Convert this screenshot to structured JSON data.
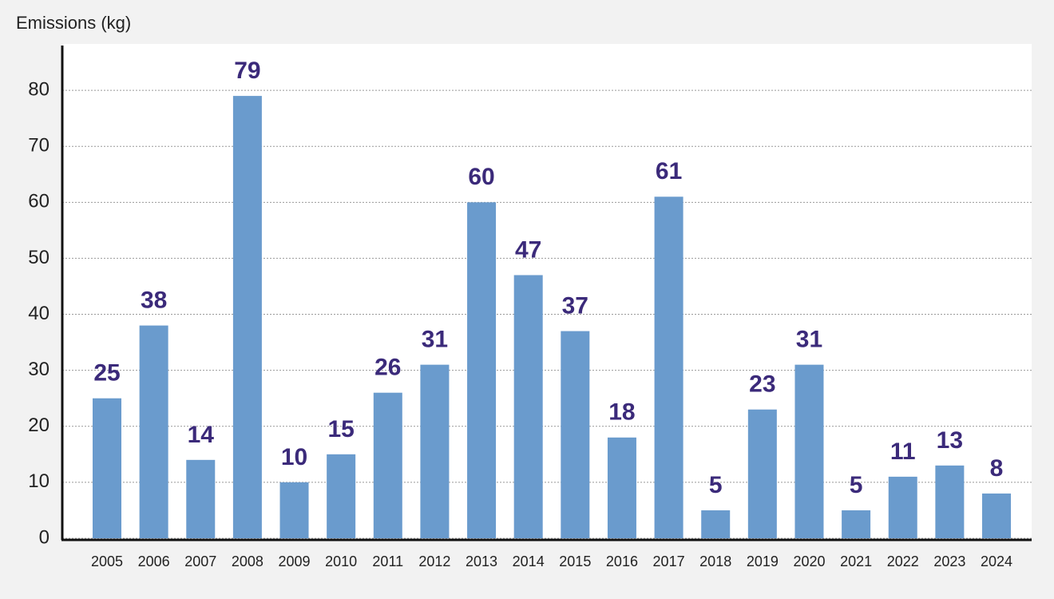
{
  "chart_data": {
    "type": "bar",
    "y_label": "Emissions (kg)",
    "categories": [
      "2005",
      "2006",
      "2007",
      "2008",
      "2009",
      "2010",
      "2011",
      "2012",
      "2013",
      "2014",
      "2015",
      "2016",
      "2017",
      "2018",
      "2019",
      "2020",
      "2021",
      "2022",
      "2023",
      "2024"
    ],
    "values": [
      25,
      38,
      14,
      79,
      10,
      15,
      26,
      31,
      60,
      47,
      37,
      18,
      61,
      5,
      23,
      31,
      5,
      11,
      13,
      8
    ],
    "color": "#6a9bcd",
    "ylim": [
      0,
      88
    ],
    "yticks": [
      0,
      10,
      20,
      30,
      40,
      50,
      60,
      70,
      80
    ],
    "grid": true
  }
}
